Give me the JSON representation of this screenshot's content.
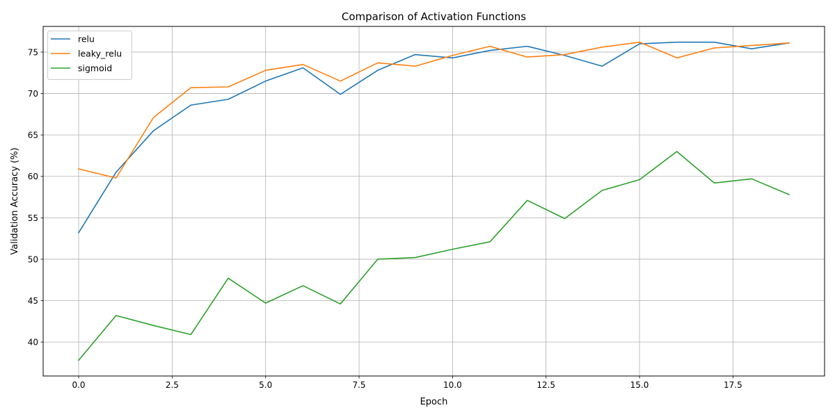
{
  "chart_data": {
    "type": "line",
    "title": "Comparison of Activation Functions",
    "xlabel": "Epoch",
    "ylabel": "Validation Accuracy (%)",
    "x": [
      0,
      1,
      2,
      3,
      4,
      5,
      6,
      7,
      8,
      9,
      10,
      11,
      12,
      13,
      14,
      15,
      16,
      17,
      18,
      19
    ],
    "xlim": [
      -0.95,
      19.95
    ],
    "ylim": [
      35.9,
      78.1
    ],
    "xticks": [
      0.0,
      2.5,
      5.0,
      7.5,
      10.0,
      12.5,
      15.0,
      17.5
    ],
    "xtick_labels": [
      "0.0",
      "2.5",
      "5.0",
      "7.5",
      "10.0",
      "12.5",
      "15.0",
      "17.5"
    ],
    "yticks": [
      40,
      45,
      50,
      55,
      60,
      65,
      70,
      75
    ],
    "ytick_labels": [
      "40",
      "45",
      "50",
      "55",
      "60",
      "65",
      "70",
      "75"
    ],
    "grid": true,
    "legend_position": "top-left",
    "series": [
      {
        "name": "relu",
        "color": "#1f77b4",
        "values": [
          53.2,
          60.5,
          65.5,
          68.6,
          69.3,
          71.5,
          73.1,
          69.9,
          72.8,
          74.7,
          74.3,
          75.2,
          75.7,
          74.6,
          73.3,
          76.0,
          76.2,
          76.2,
          75.4,
          76.1
        ]
      },
      {
        "name": "leaky_relu",
        "color": "#ff7f0e",
        "values": [
          60.9,
          59.8,
          67.1,
          70.7,
          70.8,
          72.8,
          73.5,
          71.5,
          73.7,
          73.3,
          74.6,
          75.7,
          74.4,
          74.7,
          75.6,
          76.2,
          74.3,
          75.5,
          75.8,
          76.1
        ]
      },
      {
        "name": "sigmoid",
        "color": "#2ca02c",
        "values": [
          37.8,
          43.2,
          42.0,
          40.9,
          47.7,
          44.7,
          46.8,
          44.6,
          50.0,
          50.2,
          51.2,
          52.1,
          57.1,
          54.9,
          58.3,
          59.6,
          63.0,
          59.2,
          59.7,
          57.8
        ]
      }
    ]
  }
}
